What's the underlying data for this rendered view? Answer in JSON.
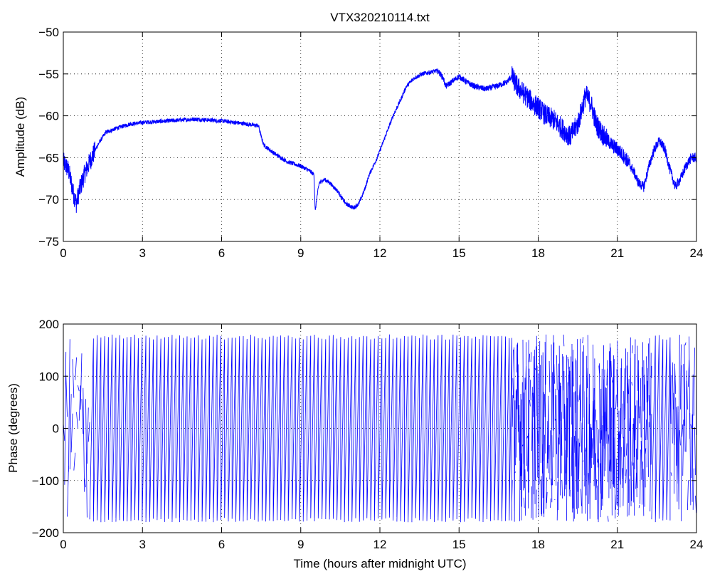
{
  "chart_data": [
    {
      "type": "line",
      "title": "VTX320210114.txt",
      "xlabel": "",
      "ylabel": "Amplitude (dB)",
      "xlim": [
        0,
        24
      ],
      "ylim": [
        -75,
        -50
      ],
      "xticks": [
        0,
        3,
        6,
        9,
        12,
        15,
        18,
        21,
        24
      ],
      "xtick_labels": [
        "0",
        "3",
        "6",
        "9",
        "12",
        "15",
        "18",
        "21",
        "24"
      ],
      "yticks": [
        -75,
        -70,
        -65,
        -60,
        -55,
        -50
      ],
      "ytick_labels": [
        "−75",
        "−70",
        "−65",
        "−60",
        "−55",
        "−50"
      ],
      "grid": true,
      "line_color": "#0000ff",
      "series": [
        {
          "x": [
            0,
            0.2,
            0.4,
            0.5,
            0.6,
            0.8,
            1.0,
            1.3,
            1.6,
            2.0,
            2.5,
            3.0,
            3.5,
            4.0,
            4.5,
            5.0,
            5.5,
            6.0,
            6.5,
            7.0,
            7.4,
            7.5,
            7.6,
            7.8,
            8.0,
            8.5,
            9.0,
            9.3,
            9.5,
            9.55,
            9.6,
            9.7,
            9.9,
            10.1,
            10.4,
            10.7,
            11.0,
            11.2,
            11.4,
            11.6,
            11.9,
            12.2,
            12.5,
            12.8,
            13.0,
            13.3,
            13.6,
            13.9,
            14.2,
            14.4,
            14.5,
            14.7,
            15.0,
            15.3,
            15.6,
            16.0,
            16.4,
            16.8,
            17.0,
            17.2,
            17.5,
            17.8,
            18.0,
            18.3,
            18.6,
            18.9,
            19.2,
            19.5,
            19.8,
            20.0,
            20.2,
            20.5,
            20.8,
            21.0,
            21.3,
            21.6,
            21.8,
            22.0,
            22.2,
            22.4,
            22.6,
            22.8,
            23.0,
            23.2,
            23.4,
            23.6,
            23.8,
            24.0
          ],
          "y": [
            -65.5,
            -66.5,
            -69.5,
            -70.5,
            -69,
            -67,
            -65.5,
            -63.5,
            -62,
            -61.5,
            -61,
            -60.8,
            -60.7,
            -60.6,
            -60.5,
            -60.4,
            -60.5,
            -60.6,
            -60.8,
            -61,
            -61.2,
            -62.5,
            -63.5,
            -64,
            -64.5,
            -65.5,
            -66,
            -66.5,
            -67,
            -71.5,
            -70,
            -68,
            -67.6,
            -68,
            -69,
            -70.5,
            -71,
            -70.5,
            -69,
            -67,
            -65,
            -62.5,
            -60,
            -58,
            -56.5,
            -55.5,
            -55,
            -54.8,
            -54.6,
            -55.5,
            -56.5,
            -56,
            -55.3,
            -56,
            -56.5,
            -56.8,
            -56.5,
            -56,
            -55.3,
            -56.5,
            -57.5,
            -58.5,
            -59,
            -60,
            -60.5,
            -61.5,
            -62.5,
            -61,
            -57.5,
            -58.5,
            -61,
            -62.5,
            -63.5,
            -64,
            -65,
            -66.5,
            -68,
            -68.5,
            -66,
            -64,
            -63,
            -64,
            -66.5,
            -68.5,
            -67.5,
            -66,
            -65,
            -65
          ]
        }
      ]
    },
    {
      "type": "line",
      "title": "",
      "xlabel": "Time (hours after midnight UTC)",
      "ylabel": "Phase (degrees)",
      "xlim": [
        0,
        24
      ],
      "ylim": [
        -200,
        200
      ],
      "xticks": [
        0,
        3,
        6,
        9,
        12,
        15,
        18,
        21,
        24
      ],
      "xtick_labels": [
        "0",
        "3",
        "6",
        "9",
        "12",
        "15",
        "18",
        "21",
        "24"
      ],
      "yticks": [
        -200,
        -100,
        0,
        100,
        200
      ],
      "ytick_labels": [
        "−200",
        "−100",
        "0",
        "100",
        "200"
      ],
      "grid": true,
      "line_color": "#0000ff",
      "series": [
        {
          "description_of_values": [],
          "wrap_range": [
            -180,
            180
          ],
          "segments": [
            {
              "x_range": [
                0,
                1.0
              ],
              "pattern": "dense",
              "period_hours": 0.05
            },
            {
              "x_range": [
                1.0,
                17.0
              ],
              "pattern": "sawtooth",
              "period_hours": 0.142
            },
            {
              "x_range": [
                17.0,
                22.3
              ],
              "pattern": "dense",
              "period_hours": 0.02
            },
            {
              "x_range": [
                22.3,
                23.0
              ],
              "pattern": "sawtooth",
              "period_hours": 0.142
            },
            {
              "x_range": [
                23.0,
                24.0
              ],
              "pattern": "dense",
              "period_hours": 0.03
            }
          ]
        }
      ]
    }
  ]
}
